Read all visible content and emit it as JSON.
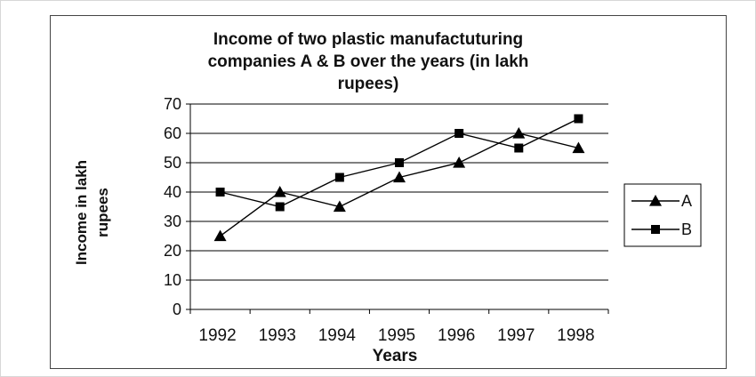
{
  "chart_data": {
    "type": "line",
    "title": [
      "Income of two plastic manufactuturing",
      "companies A & B over the years (in lakh",
      "rupees)"
    ],
    "xlabel": "Years",
    "ylabel": [
      "Income in lakh",
      "rupees"
    ],
    "categories": [
      "1992",
      "1993",
      "1994",
      "1995",
      "1996",
      "1997",
      "1998"
    ],
    "ylim": [
      0,
      70
    ],
    "yticks": [
      "0",
      "10",
      "20",
      "30",
      "40",
      "50",
      "60",
      "70"
    ],
    "grid": "horizontal",
    "legend_position": "right",
    "series": [
      {
        "name": "A",
        "marker": "triangle",
        "values": [
          25,
          40,
          35,
          45,
          50,
          60,
          55
        ]
      },
      {
        "name": "B",
        "marker": "square",
        "values": [
          40,
          35,
          45,
          50,
          60,
          55,
          65
        ]
      }
    ],
    "colors": {
      "line": "#000000",
      "grid": "#000000",
      "border": "#444444"
    }
  }
}
